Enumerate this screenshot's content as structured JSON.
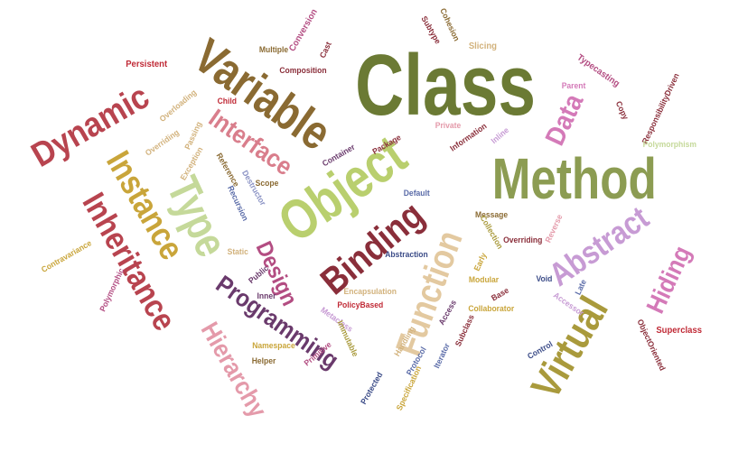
{
  "palette": {
    "olive": "#6b7a34",
    "sage": "#8c9c52",
    "khaki": "#a99a3c",
    "mustard": "#c9a53a",
    "tan": "#d2b27c",
    "sand": "#e3c9a0",
    "lime": "#b9cf6e",
    "pale_green": "#c5d99a",
    "brown": "#8a6a32",
    "wine": "#8a2e3a",
    "crimson": "#b8444f",
    "rose": "#d97e8c",
    "pink": "#e49aaa",
    "magenta": "#b34d82",
    "orchid": "#d47ab8",
    "lavender": "#c79bd4",
    "plum": "#6a3a6c",
    "slate": "#5a6ba8",
    "navy": "#3c4c88",
    "periwinkle": "#8a92c4",
    "red": "#c02a36"
  },
  "words": [
    {
      "text": "Class",
      "color": "olive",
      "orientation": "horizontal"
    },
    {
      "text": "Method",
      "color": "sage",
      "orientation": "horizontal"
    },
    {
      "text": "Variable",
      "color": "brown",
      "orientation": "rotated"
    },
    {
      "text": "Object",
      "color": "lime",
      "orientation": "rotated"
    },
    {
      "text": "Dynamic",
      "color": "crimson",
      "orientation": "rotated"
    },
    {
      "text": "Instance",
      "color": "mustard",
      "orientation": "rotated"
    },
    {
      "text": "Inheritance",
      "color": "crimson",
      "orientation": "rotated"
    },
    {
      "text": "Type",
      "color": "pale_green",
      "orientation": "rotated"
    },
    {
      "text": "Interface",
      "color": "rose",
      "orientation": "rotated"
    },
    {
      "text": "Binding",
      "color": "wine",
      "orientation": "rotated"
    },
    {
      "text": "Function",
      "color": "sand",
      "orientation": "rotated"
    },
    {
      "text": "Virtual",
      "color": "khaki",
      "orientation": "rotated"
    },
    {
      "text": "Programming",
      "color": "plum",
      "orientation": "rotated"
    },
    {
      "text": "Hierarchy",
      "color": "pink",
      "orientation": "rotated"
    },
    {
      "text": "Design",
      "color": "magenta",
      "orientation": "rotated"
    },
    {
      "text": "Abstract",
      "color": "lavender",
      "orientation": "rotated"
    },
    {
      "text": "Hiding",
      "color": "orchid",
      "orientation": "rotated"
    },
    {
      "text": "Data",
      "color": "orchid",
      "orientation": "rotated"
    },
    {
      "text": "Persistent",
      "color": "red",
      "orientation": "horizontal"
    },
    {
      "text": "Overloading",
      "color": "tan",
      "orientation": "rotated"
    },
    {
      "text": "Overriding",
      "color": "tan",
      "orientation": "rotated"
    },
    {
      "text": "Child",
      "color": "red",
      "orientation": "horizontal"
    },
    {
      "text": "Passing",
      "color": "tan",
      "orientation": "rotated"
    },
    {
      "text": "Exception",
      "color": "tan",
      "orientation": "rotated"
    },
    {
      "text": "Reference",
      "color": "brown",
      "orientation": "rotated"
    },
    {
      "text": "Destructor",
      "color": "periwinkle",
      "orientation": "rotated"
    },
    {
      "text": "Recursion",
      "color": "slate",
      "orientation": "rotated"
    },
    {
      "text": "Scope",
      "color": "brown",
      "orientation": "horizontal"
    },
    {
      "text": "Multiple",
      "color": "brown",
      "orientation": "horizontal"
    },
    {
      "text": "Conversion",
      "color": "magenta",
      "orientation": "rotated"
    },
    {
      "text": "Cast",
      "color": "wine",
      "orientation": "rotated"
    },
    {
      "text": "Composition",
      "color": "wine",
      "orientation": "horizontal"
    },
    {
      "text": "Subtype",
      "color": "wine",
      "orientation": "rotated"
    },
    {
      "text": "Cohesion",
      "color": "brown",
      "orientation": "rotated"
    },
    {
      "text": "Slicing",
      "color": "tan",
      "orientation": "horizontal"
    },
    {
      "text": "Typecasting",
      "color": "magenta",
      "orientation": "rotated"
    },
    {
      "text": "Parent",
      "color": "orchid",
      "orientation": "rotated"
    },
    {
      "text": "Copy",
      "color": "wine",
      "orientation": "rotated"
    },
    {
      "text": "ResponsibilityDriven",
      "color": "wine",
      "orientation": "rotated"
    },
    {
      "text": "Polymorphism",
      "color": "pale_green",
      "orientation": "horizontal"
    },
    {
      "text": "Container",
      "color": "plum",
      "orientation": "rotated"
    },
    {
      "text": "Package",
      "color": "wine",
      "orientation": "rotated"
    },
    {
      "text": "Private",
      "color": "pink",
      "orientation": "horizontal"
    },
    {
      "text": "Information",
      "color": "wine",
      "orientation": "rotated"
    },
    {
      "text": "Inline",
      "color": "lavender",
      "orientation": "rotated"
    },
    {
      "text": "Default",
      "color": "slate",
      "orientation": "horizontal"
    },
    {
      "text": "Message",
      "color": "brown",
      "orientation": "horizontal"
    },
    {
      "text": "Collection",
      "color": "khaki",
      "orientation": "rotated"
    },
    {
      "text": "Overriding",
      "color": "wine",
      "orientation": "horizontal"
    },
    {
      "text": "Reverse",
      "color": "pink",
      "orientation": "rotated"
    },
    {
      "text": "Abstraction",
      "color": "navy",
      "orientation": "rotated"
    },
    {
      "text": "Early",
      "color": "mustard",
      "orientation": "rotated"
    },
    {
      "text": "Modular",
      "color": "mustard",
      "orientation": "horizontal"
    },
    {
      "text": "Base",
      "color": "wine",
      "orientation": "rotated"
    },
    {
      "text": "Void",
      "color": "navy",
      "orientation": "horizontal"
    },
    {
      "text": "Late",
      "color": "slate",
      "orientation": "rotated"
    },
    {
      "text": "Accessor",
      "color": "lavender",
      "orientation": "rotated"
    },
    {
      "text": "Contravariance",
      "color": "mustard",
      "orientation": "rotated"
    },
    {
      "text": "Polymorphic",
      "color": "magenta",
      "orientation": "rotated"
    },
    {
      "text": "Static",
      "color": "tan",
      "orientation": "horizontal"
    },
    {
      "text": "Public",
      "color": "plum",
      "orientation": "rotated"
    },
    {
      "text": "Inner",
      "color": "plum",
      "orientation": "horizontal"
    },
    {
      "text": "Encapsulation",
      "color": "tan",
      "orientation": "horizontal"
    },
    {
      "text": "PolicyBased",
      "color": "red",
      "orientation": "horizontal"
    },
    {
      "text": "Access",
      "color": "plum",
      "orientation": "rotated"
    },
    {
      "text": "Collaborator",
      "color": "mustard",
      "orientation": "horizontal"
    },
    {
      "text": "Subclass",
      "color": "wine",
      "orientation": "rotated"
    },
    {
      "text": "Metaclass",
      "color": "lavender",
      "orientation": "rotated"
    },
    {
      "text": "Namespace",
      "color": "mustard",
      "orientation": "horizontal"
    },
    {
      "text": "Helper",
      "color": "brown",
      "orientation": "horizontal"
    },
    {
      "text": "Primitive",
      "color": "magenta",
      "orientation": "rotated"
    },
    {
      "text": "Immutable",
      "color": "khaki",
      "orientation": "rotated"
    },
    {
      "text": "Handling",
      "color": "tan",
      "orientation": "rotated"
    },
    {
      "text": "Protocol",
      "color": "slate",
      "orientation": "rotated"
    },
    {
      "text": "Iterator",
      "color": "slate",
      "orientation": "rotated"
    },
    {
      "text": "Protected",
      "color": "navy",
      "orientation": "rotated"
    },
    {
      "text": "Specification",
      "color": "mustard",
      "orientation": "rotated"
    },
    {
      "text": "Control",
      "color": "navy",
      "orientation": "rotated"
    },
    {
      "text": "ObjectOriented",
      "color": "wine",
      "orientation": "rotated"
    },
    {
      "text": "Superclass",
      "color": "red",
      "orientation": "horizontal"
    }
  ]
}
